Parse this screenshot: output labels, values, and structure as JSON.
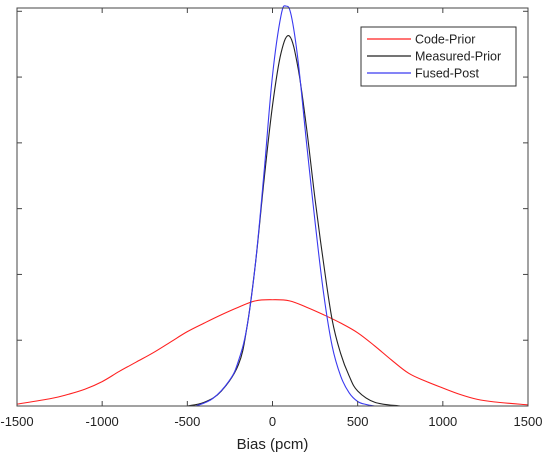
{
  "chart_data": {
    "type": "line",
    "title": "",
    "xlabel": "Bias (pcm)",
    "ylabel": "",
    "xlim": [
      -1500,
      1500
    ],
    "ylim": [
      0,
      1.06
    ],
    "grid": false,
    "legend_position": "top-right",
    "xticks": [
      -1500,
      -1000,
      -500,
      0,
      500,
      1000,
      1500
    ],
    "x_tick_labels": [
      "-1500",
      "-1000",
      "-500",
      "0",
      "500",
      "1000",
      "1500"
    ],
    "y_tick_count": 6,
    "series": [
      {
        "name": "Code-Prior",
        "color": "#ff2020",
        "x": [
          -1500,
          -1300,
          -1200,
          -1100,
          -1000,
          -900,
          -800,
          -700,
          -600,
          -500,
          -400,
          -300,
          -200,
          -100,
          0,
          100,
          200,
          300,
          400,
          500,
          600,
          700,
          800,
          900,
          1000,
          1100,
          1200,
          1300,
          1500
        ],
        "y": [
          0.005,
          0.02,
          0.031,
          0.045,
          0.065,
          0.092,
          0.117,
          0.142,
          0.17,
          0.198,
          0.221,
          0.243,
          0.263,
          0.28,
          0.283,
          0.28,
          0.263,
          0.243,
          0.221,
          0.195,
          0.16,
          0.122,
          0.087,
          0.066,
          0.048,
          0.031,
          0.018,
          0.011,
          0.003
        ]
      },
      {
        "name": "Measured-Prior",
        "color": "#222222",
        "x": [
          -500,
          -400,
          -300,
          -200,
          -150,
          -100,
          -50,
          0,
          50,
          100,
          150,
          200,
          250,
          300,
          350,
          400,
          450,
          500,
          600,
          750
        ],
        "y": [
          0.0,
          0.01,
          0.04,
          0.11,
          0.21,
          0.38,
          0.6,
          0.8,
          0.94,
          0.985,
          0.9,
          0.74,
          0.55,
          0.38,
          0.23,
          0.14,
          0.08,
          0.04,
          0.01,
          0.0
        ]
      },
      {
        "name": "Fused-Post",
        "color": "#3a3af0",
        "x": [
          -450,
          -350,
          -250,
          -200,
          -150,
          -100,
          -50,
          0,
          50,
          80,
          110,
          150,
          200,
          250,
          300,
          350,
          400,
          450,
          500,
          550,
          600
        ],
        "y": [
          0.0,
          0.02,
          0.07,
          0.12,
          0.21,
          0.38,
          0.62,
          0.88,
          1.04,
          1.065,
          1.04,
          0.92,
          0.7,
          0.49,
          0.3,
          0.16,
          0.08,
          0.035,
          0.012,
          0.004,
          0.0
        ]
      }
    ]
  }
}
